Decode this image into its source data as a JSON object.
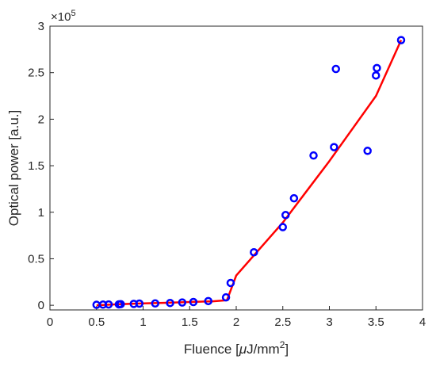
{
  "chart_data": {
    "type": "scatter",
    "xlabel": "Fluence [",
    "xlabel_mu": "μ",
    "xlabel_unit": "J/mm",
    "xlabel_sup": "2",
    "xlabel_close": "]",
    "ylabel": "Optical power [a.u.]",
    "exponent_prefix": "×10",
    "exponent_power": "5",
    "xlim": [
      0,
      4
    ],
    "ylim": [
      -5000,
      300000
    ],
    "x_ticks": [
      0,
      0.5,
      1,
      1.5,
      2,
      2.5,
      3,
      3.5,
      4
    ],
    "x_tick_labels": [
      "0",
      "0.5",
      "1",
      "1.5",
      "2",
      "2.5",
      "3",
      "3.5",
      "4"
    ],
    "y_ticks": [
      0,
      50000,
      100000,
      150000,
      200000,
      250000,
      300000
    ],
    "y_tick_labels": [
      "0",
      "0.5",
      "1",
      "1.5",
      "2",
      "2.5",
      "3"
    ],
    "grid": false,
    "series": [
      {
        "kind": "markers",
        "marker": "circle-open",
        "color": "#0000ff",
        "points": [
          [
            0.5,
            500
          ],
          [
            0.57,
            700
          ],
          [
            0.63,
            900
          ],
          [
            0.74,
            1000
          ],
          [
            0.76,
            1200
          ],
          [
            0.9,
            1500
          ],
          [
            0.96,
            1800
          ],
          [
            1.13,
            2000
          ],
          [
            1.29,
            2500
          ],
          [
            1.42,
            3000
          ],
          [
            1.54,
            3500
          ],
          [
            1.7,
            4500
          ],
          [
            1.89,
            8500
          ],
          [
            1.94,
            24000
          ],
          [
            2.19,
            57000
          ],
          [
            2.5,
            84000
          ],
          [
            2.53,
            97000
          ],
          [
            2.62,
            115000
          ],
          [
            2.83,
            161000
          ],
          [
            3.05,
            170000
          ],
          [
            3.07,
            254000
          ],
          [
            3.41,
            166000
          ],
          [
            3.5,
            247000
          ],
          [
            3.51,
            255000
          ],
          [
            3.77,
            285000
          ]
        ]
      },
      {
        "kind": "line",
        "color": "#ff0000",
        "points": [
          [
            0.5,
            0
          ],
          [
            0.75,
            1100
          ],
          [
            1.0,
            2000
          ],
          [
            1.25,
            2700
          ],
          [
            1.5,
            3500
          ],
          [
            1.75,
            4300
          ],
          [
            1.9,
            5500
          ],
          [
            2.0,
            32000
          ],
          [
            2.5,
            89000
          ],
          [
            3.0,
            155000
          ],
          [
            3.5,
            225000
          ],
          [
            3.77,
            285000
          ]
        ]
      }
    ]
  }
}
